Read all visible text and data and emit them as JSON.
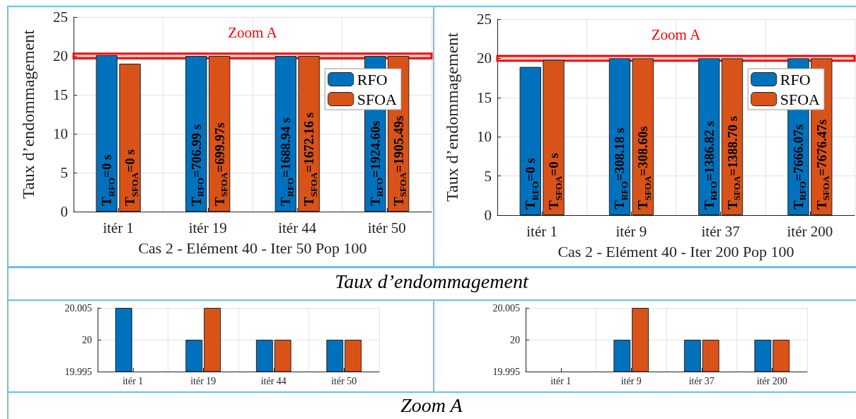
{
  "chart_data": [
    {
      "type": "bar",
      "xlabel": "Cas 2 - Elément 40 - Iter 50 Pop 100",
      "ylabel": "Taux d’endommagement",
      "categories": [
        "itér 1",
        "itér 19",
        "itér 44",
        "itér 50"
      ],
      "series": [
        {
          "name": "RFO",
          "color": "#0072bd",
          "values": [
            20.1,
            20,
            20,
            20
          ]
        },
        {
          "name": "SFOA",
          "color": "#d95319",
          "values": [
            19,
            20,
            20,
            20
          ]
        }
      ],
      "ylim": [
        0,
        25
      ],
      "yticks": [
        0,
        5,
        10,
        15,
        20,
        25
      ],
      "grid": true,
      "legend": "right",
      "bands": [
        {
          "axis": "y",
          "from": 19.7,
          "to": 20.3,
          "label": "Zoom A",
          "color": "#ff0000"
        }
      ],
      "annotations": [
        "Taux d’endommagement",
        {
          "text": "T$_{RFO}$=0 s",
          "x": "itér 1",
          "y": 0
        },
        {
          "text": "T$_{SFOA}$=0 s",
          "x": "itér 1",
          "y": 0
        },
        {
          "text": "T$_{RFO}$=706.99 s",
          "x": "itér 19",
          "y": 0
        },
        {
          "text": "T$_{SFOA}$=699.97s",
          "x": "itér 19",
          "y": 0
        },
        {
          "text": "T$_{RFO}$=1688.94 s",
          "x": "itér 44",
          "y": 0
        },
        {
          "text": "T$_{SFOA}$=1672.16 s",
          "x": "itér 44",
          "y": 0
        },
        {
          "text": "T$_{RFO}$=1924.60s",
          "x": "itér 50",
          "y": 0
        },
        {
          "text": "T$_{SFOA}$=1905.49s",
          "x": "itér 50",
          "y": 0
        }
      ]
    },
    {
      "type": "bar",
      "xlabel": "Cas 2 - Elément 40 - Iter 200 Pop 100",
      "ylabel": "Taux d’endommagement",
      "categories": [
        "itér 1",
        "itér 9",
        "itér 37",
        "itér 200"
      ],
      "series": [
        {
          "name": "RFO",
          "color": "#0072bd",
          "values": [
            18.9,
            20,
            20,
            20
          ]
        },
        {
          "name": "SFOA",
          "color": "#d95319",
          "values": [
            19.8,
            20,
            20,
            20
          ]
        }
      ],
      "ylim": [
        0,
        25
      ],
      "yticks": [
        0,
        5,
        10,
        15,
        20,
        25
      ],
      "grid": true,
      "legend": "right",
      "bands": [
        {
          "axis": "y",
          "from": 19.7,
          "to": 20.3,
          "label": "Zoom A",
          "color": "#ff0000"
        }
      ],
      "annotations": [
        {
          "text": "T$_{RFO}$=0 s",
          "x": "itér 1",
          "y": 0
        },
        {
          "text": "T$_{SFOA}$=0 s",
          "x": "itér 1",
          "y": 0
        },
        {
          "text": "T$_{RFO}$=308.18 s",
          "x": "itér 9",
          "y": 0
        },
        {
          "text": "T$_{SFOA}$=308.60s",
          "x": "itér 9",
          "y": 0
        },
        {
          "text": "T$_{RFO}$=1386.82 s",
          "x": "itér 37",
          "y": 0
        },
        {
          "text": "T$_{SFOA}$=1388.70 s",
          "x": "itér 37",
          "y": 0
        },
        {
          "text": "T$_{RFO}$=7666.07s",
          "x": "itér 200",
          "y": 0
        },
        {
          "text": "T$_{SFOA}$=7676.47s",
          "x": "itér 200",
          "y": 0
        }
      ]
    },
    {
      "type": "bar",
      "categories": [
        "itér 1",
        "itér 19",
        "itér 44",
        "itér 50"
      ],
      "series": [
        {
          "color": "#0072bd",
          "values": [
            20.005,
            20,
            20,
            20
          ]
        },
        {
          "color": "#d95319",
          "values": [
            null,
            20.005,
            20,
            20
          ]
        }
      ],
      "ylim": [
        19.995,
        20.005
      ],
      "yticks": [
        19.995,
        20,
        20.005
      ],
      "grid": true,
      "annotations": [
        "Zoom A"
      ]
    },
    {
      "type": "bar",
      "categories": [
        "itér 1",
        "itér 9",
        "itér 37",
        "itér 200"
      ],
      "series": [
        {
          "color": "#0072bd",
          "values": [
            null,
            20,
            20,
            20
          ]
        },
        {
          "color": "#d95319",
          "values": [
            null,
            20.005,
            20,
            20
          ]
        }
      ],
      "ylim": [
        19.995,
        20.005
      ],
      "yticks": [
        19.995,
        20,
        20.005
      ],
      "grid": true
    }
  ]
}
